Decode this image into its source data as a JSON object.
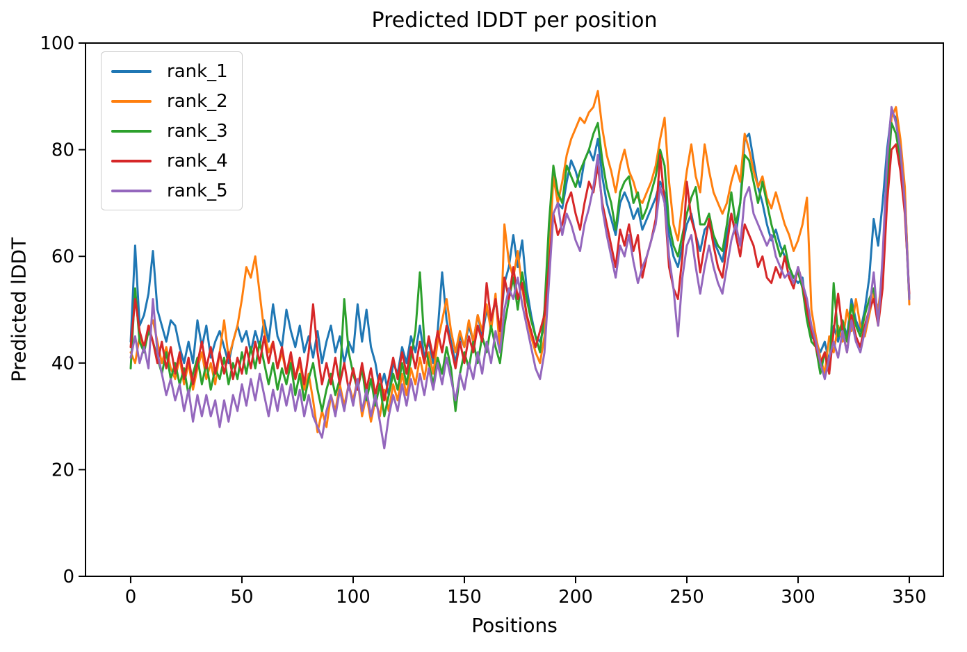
{
  "chart_data": {
    "type": "line",
    "title": "Predicted lDDT per position",
    "xlabel": "Positions",
    "ylabel": "Predicted lDDT",
    "xlim": [
      -20.3,
      365.3
    ],
    "ylim": [
      0,
      100
    ],
    "x_ticks": [
      0,
      50,
      100,
      150,
      200,
      250,
      300,
      350
    ],
    "y_ticks": [
      0,
      20,
      40,
      60,
      80,
      100
    ],
    "grid": false,
    "legend_position": "upper left",
    "x_start": 0,
    "x_step": 2,
    "series": [
      {
        "name": "rank_1",
        "color": "#1f77b4",
        "values": [
          44,
          62,
          47,
          49,
          53,
          61,
          50,
          47,
          44,
          48,
          47,
          43,
          40,
          44,
          40,
          48,
          43,
          47,
          41,
          44,
          46,
          43,
          40,
          44,
          47,
          44,
          46,
          42,
          46,
          43,
          48,
          44,
          51,
          45,
          43,
          50,
          46,
          43,
          47,
          42,
          45,
          41,
          46,
          40,
          44,
          47,
          42,
          45,
          40,
          44,
          42,
          51,
          44,
          50,
          43,
          40,
          35,
          38,
          34,
          40,
          38,
          43,
          40,
          45,
          42,
          47,
          41,
          44,
          40,
          46,
          57,
          48,
          44,
          40,
          45,
          43,
          47,
          44,
          49,
          45,
          50,
          47,
          52,
          46,
          55,
          58,
          64,
          58,
          63,
          54,
          49,
          45,
          44,
          47,
          60,
          76,
          70,
          69,
          74,
          78,
          76,
          73,
          78,
          80,
          78,
          82,
          75,
          70,
          67,
          64,
          70,
          72,
          70,
          67,
          69,
          65,
          67,
          69,
          71,
          74,
          72,
          64,
          60,
          58,
          62,
          66,
          68,
          64,
          61,
          65,
          66,
          63,
          61,
          59,
          64,
          68,
          64,
          70,
          82,
          83,
          78,
          73,
          70,
          66,
          63,
          65,
          62,
          60,
          58,
          56,
          55,
          56,
          49,
          45,
          44,
          42,
          44,
          40,
          47,
          44,
          48,
          45,
          52,
          48,
          46,
          50,
          56,
          67,
          62,
          70,
          80,
          87,
          86,
          80,
          72,
          52
        ]
      },
      {
        "name": "rank_2",
        "color": "#ff7f0e",
        "values": [
          42,
          40,
          45,
          42,
          46,
          48,
          44,
          40,
          43,
          39,
          37,
          41,
          36,
          40,
          35,
          39,
          42,
          37,
          40,
          36,
          42,
          48,
          41,
          44,
          47,
          52,
          58,
          56,
          60,
          53,
          46,
          42,
          44,
          39,
          42,
          38,
          41,
          37,
          40,
          35,
          38,
          33,
          27,
          31,
          28,
          34,
          31,
          36,
          32,
          36,
          33,
          37,
          30,
          34,
          29,
          33,
          30,
          35,
          31,
          36,
          33,
          38,
          34,
          39,
          36,
          41,
          37,
          42,
          38,
          44,
          48,
          52,
          46,
          42,
          46,
          43,
          48,
          44,
          49,
          46,
          51,
          46,
          53,
          42,
          66,
          59,
          56,
          61,
          54,
          49,
          45,
          42,
          40,
          45,
          58,
          75,
          70,
          74,
          79,
          82,
          84,
          86,
          85,
          87,
          88,
          91,
          84,
          79,
          76,
          72,
          77,
          80,
          76,
          74,
          71,
          70,
          72,
          74,
          77,
          82,
          86,
          74,
          66,
          63,
          70,
          76,
          81,
          75,
          72,
          81,
          76,
          72,
          70,
          68,
          70,
          74,
          77,
          74,
          83,
          80,
          76,
          73,
          75,
          71,
          69,
          72,
          69,
          66,
          64,
          61,
          63,
          66,
          71,
          50,
          45,
          41,
          38,
          45,
          42,
          47,
          44,
          50,
          46,
          52,
          47,
          45,
          49,
          53,
          50,
          57,
          72,
          86,
          88,
          82,
          73,
          51
        ]
      },
      {
        "name": "rank_3",
        "color": "#2ca02c",
        "values": [
          39,
          54,
          44,
          42,
          46,
          44,
          41,
          38,
          42,
          37,
          40,
          36,
          39,
          34,
          38,
          41,
          36,
          40,
          35,
          39,
          37,
          41,
          36,
          40,
          37,
          42,
          38,
          43,
          39,
          44,
          40,
          36,
          40,
          35,
          39,
          36,
          40,
          34,
          38,
          33,
          37,
          40,
          35,
          31,
          35,
          38,
          34,
          37,
          52,
          42,
          38,
          35,
          39,
          33,
          37,
          32,
          36,
          30,
          34,
          38,
          35,
          40,
          36,
          41,
          46,
          57,
          44,
          40,
          36,
          41,
          38,
          43,
          39,
          31,
          38,
          42,
          39,
          44,
          40,
          45,
          42,
          47,
          43,
          40,
          47,
          52,
          56,
          50,
          57,
          52,
          48,
          45,
          42,
          50,
          66,
          77,
          72,
          70,
          77,
          75,
          73,
          76,
          78,
          80,
          83,
          85,
          78,
          73,
          70,
          65,
          72,
          74,
          75,
          70,
          72,
          67,
          69,
          72,
          75,
          80,
          77,
          66,
          62,
          60,
          64,
          68,
          71,
          73,
          66,
          66,
          68,
          64,
          62,
          61,
          66,
          72,
          66,
          70,
          79,
          78,
          74,
          70,
          74,
          70,
          66,
          63,
          60,
          62,
          58,
          56,
          57,
          54,
          48,
          44,
          43,
          38,
          42,
          38,
          55,
          45,
          48,
          44,
          51,
          47,
          45,
          49,
          52,
          54,
          48,
          56,
          73,
          85,
          83,
          78,
          69,
          52
        ]
      },
      {
        "name": "rank_4",
        "color": "#d62728",
        "values": [
          43,
          52,
          46,
          43,
          47,
          44,
          40,
          44,
          39,
          43,
          38,
          42,
          37,
          41,
          36,
          40,
          44,
          39,
          43,
          38,
          42,
          38,
          42,
          37,
          41,
          38,
          43,
          39,
          44,
          40,
          45,
          40,
          44,
          39,
          43,
          38,
          42,
          37,
          41,
          36,
          42,
          51,
          42,
          36,
          40,
          36,
          41,
          36,
          40,
          35,
          39,
          35,
          40,
          35,
          39,
          34,
          38,
          33,
          37,
          41,
          37,
          42,
          38,
          43,
          39,
          44,
          40,
          45,
          41,
          46,
          42,
          47,
          43,
          39,
          44,
          40,
          45,
          42,
          47,
          44,
          55,
          48,
          52,
          46,
          56,
          52,
          58,
          52,
          55,
          49,
          46,
          43,
          46,
          49,
          58,
          68,
          64,
          66,
          70,
          72,
          68,
          65,
          70,
          74,
          72,
          77,
          70,
          66,
          62,
          58,
          65,
          62,
          66,
          61,
          64,
          56,
          60,
          63,
          67,
          79,
          70,
          58,
          54,
          52,
          60,
          74,
          67,
          64,
          57,
          62,
          67,
          62,
          58,
          56,
          62,
          68,
          64,
          60,
          66,
          64,
          62,
          58,
          60,
          56,
          55,
          58,
          56,
          60,
          56,
          54,
          58,
          55,
          50,
          46,
          43,
          40,
          42,
          38,
          46,
          53,
          46,
          42,
          49,
          45,
          43,
          47,
          50,
          52,
          47,
          54,
          70,
          80,
          81,
          76,
          68,
          53
        ]
      },
      {
        "name": "rank_5",
        "color": "#9467bd",
        "values": [
          41,
          45,
          40,
          43,
          39,
          52,
          42,
          38,
          34,
          37,
          33,
          36,
          31,
          35,
          29,
          34,
          30,
          34,
          30,
          33,
          28,
          33,
          29,
          34,
          31,
          36,
          32,
          37,
          33,
          38,
          34,
          30,
          35,
          31,
          36,
          32,
          36,
          31,
          35,
          30,
          34,
          30,
          28,
          26,
          31,
          34,
          30,
          35,
          31,
          36,
          32,
          37,
          31,
          35,
          30,
          34,
          29,
          24,
          30,
          34,
          31,
          36,
          32,
          37,
          33,
          38,
          34,
          39,
          35,
          40,
          36,
          41,
          37,
          33,
          38,
          35,
          40,
          37,
          42,
          38,
          44,
          40,
          46,
          42,
          50,
          54,
          52,
          56,
          51,
          47,
          43,
          39,
          37,
          42,
          55,
          68,
          70,
          64,
          68,
          66,
          63,
          61,
          66,
          69,
          73,
          79,
          69,
          64,
          60,
          56,
          62,
          60,
          64,
          59,
          55,
          58,
          60,
          63,
          66,
          73,
          70,
          60,
          54,
          45,
          56,
          62,
          64,
          58,
          53,
          58,
          62,
          58,
          55,
          53,
          58,
          63,
          66,
          62,
          71,
          73,
          68,
          66,
          64,
          62,
          64,
          60,
          58,
          56,
          57,
          55,
          58,
          55,
          52,
          47,
          44,
          40,
          37,
          41,
          44,
          41,
          46,
          42,
          48,
          44,
          42,
          46,
          50,
          57,
          47,
          60,
          78,
          88,
          85,
          80,
          70,
          52
        ]
      }
    ]
  }
}
